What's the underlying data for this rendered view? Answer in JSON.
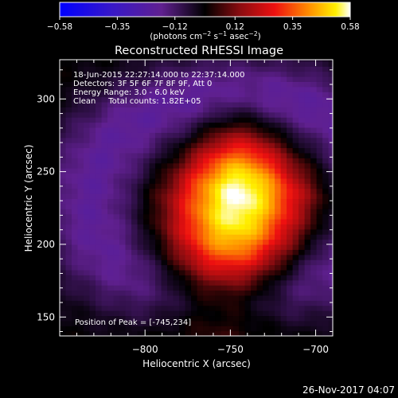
{
  "chart_data": {
    "type": "heatmap",
    "title": "Reconstructed RHESSI Image",
    "xlabel": "Heliocentric X (arcsec)",
    "ylabel": "Heliocentric Y (arcsec)",
    "xlim": [
      -850,
      -690
    ],
    "ylim": [
      137,
      327
    ],
    "xticks": [
      -800,
      -750,
      -700
    ],
    "xtick_labels": [
      "−800",
      "−750",
      "−700"
    ],
    "yticks": [
      150,
      200,
      250,
      300
    ],
    "ytick_labels": [
      "150",
      "200",
      "250",
      "300"
    ],
    "colorbar": {
      "range": [
        -0.58,
        0.58
      ],
      "ticks": [
        -0.58,
        -0.35,
        -0.12,
        0.12,
        0.35,
        0.58
      ],
      "tick_labels": [
        "−0.58",
        "−0.35",
        "−0.12",
        "0.12",
        "0.35",
        "0.58"
      ],
      "unit_prefix": "(photons cm",
      "unit_exp1": "−2",
      "unit_mid": " s",
      "unit_exp2": "−1",
      "unit_mid2": " asec",
      "unit_exp3": "−2",
      "unit_suffix": ")"
    },
    "annotations": [
      "18-Jun-2015 22:27:14.000 to 22:37:14.000",
      "Detectors: 3F 5F 6F 7F 8F 9F, Att 0",
      "Energy Range: 3.0 - 6.0 keV",
      "Clean     Total counts: 1.82E+05"
    ],
    "peak_label": "Position of Peak = [-745,234]",
    "peak": [
      -745,
      234
    ],
    "peak_value": 0.58,
    "source_extent_x": [
      -790,
      -705
    ],
    "source_extent_y": [
      145,
      275
    ]
  },
  "footer_date": "26-Nov-2017 04:07"
}
